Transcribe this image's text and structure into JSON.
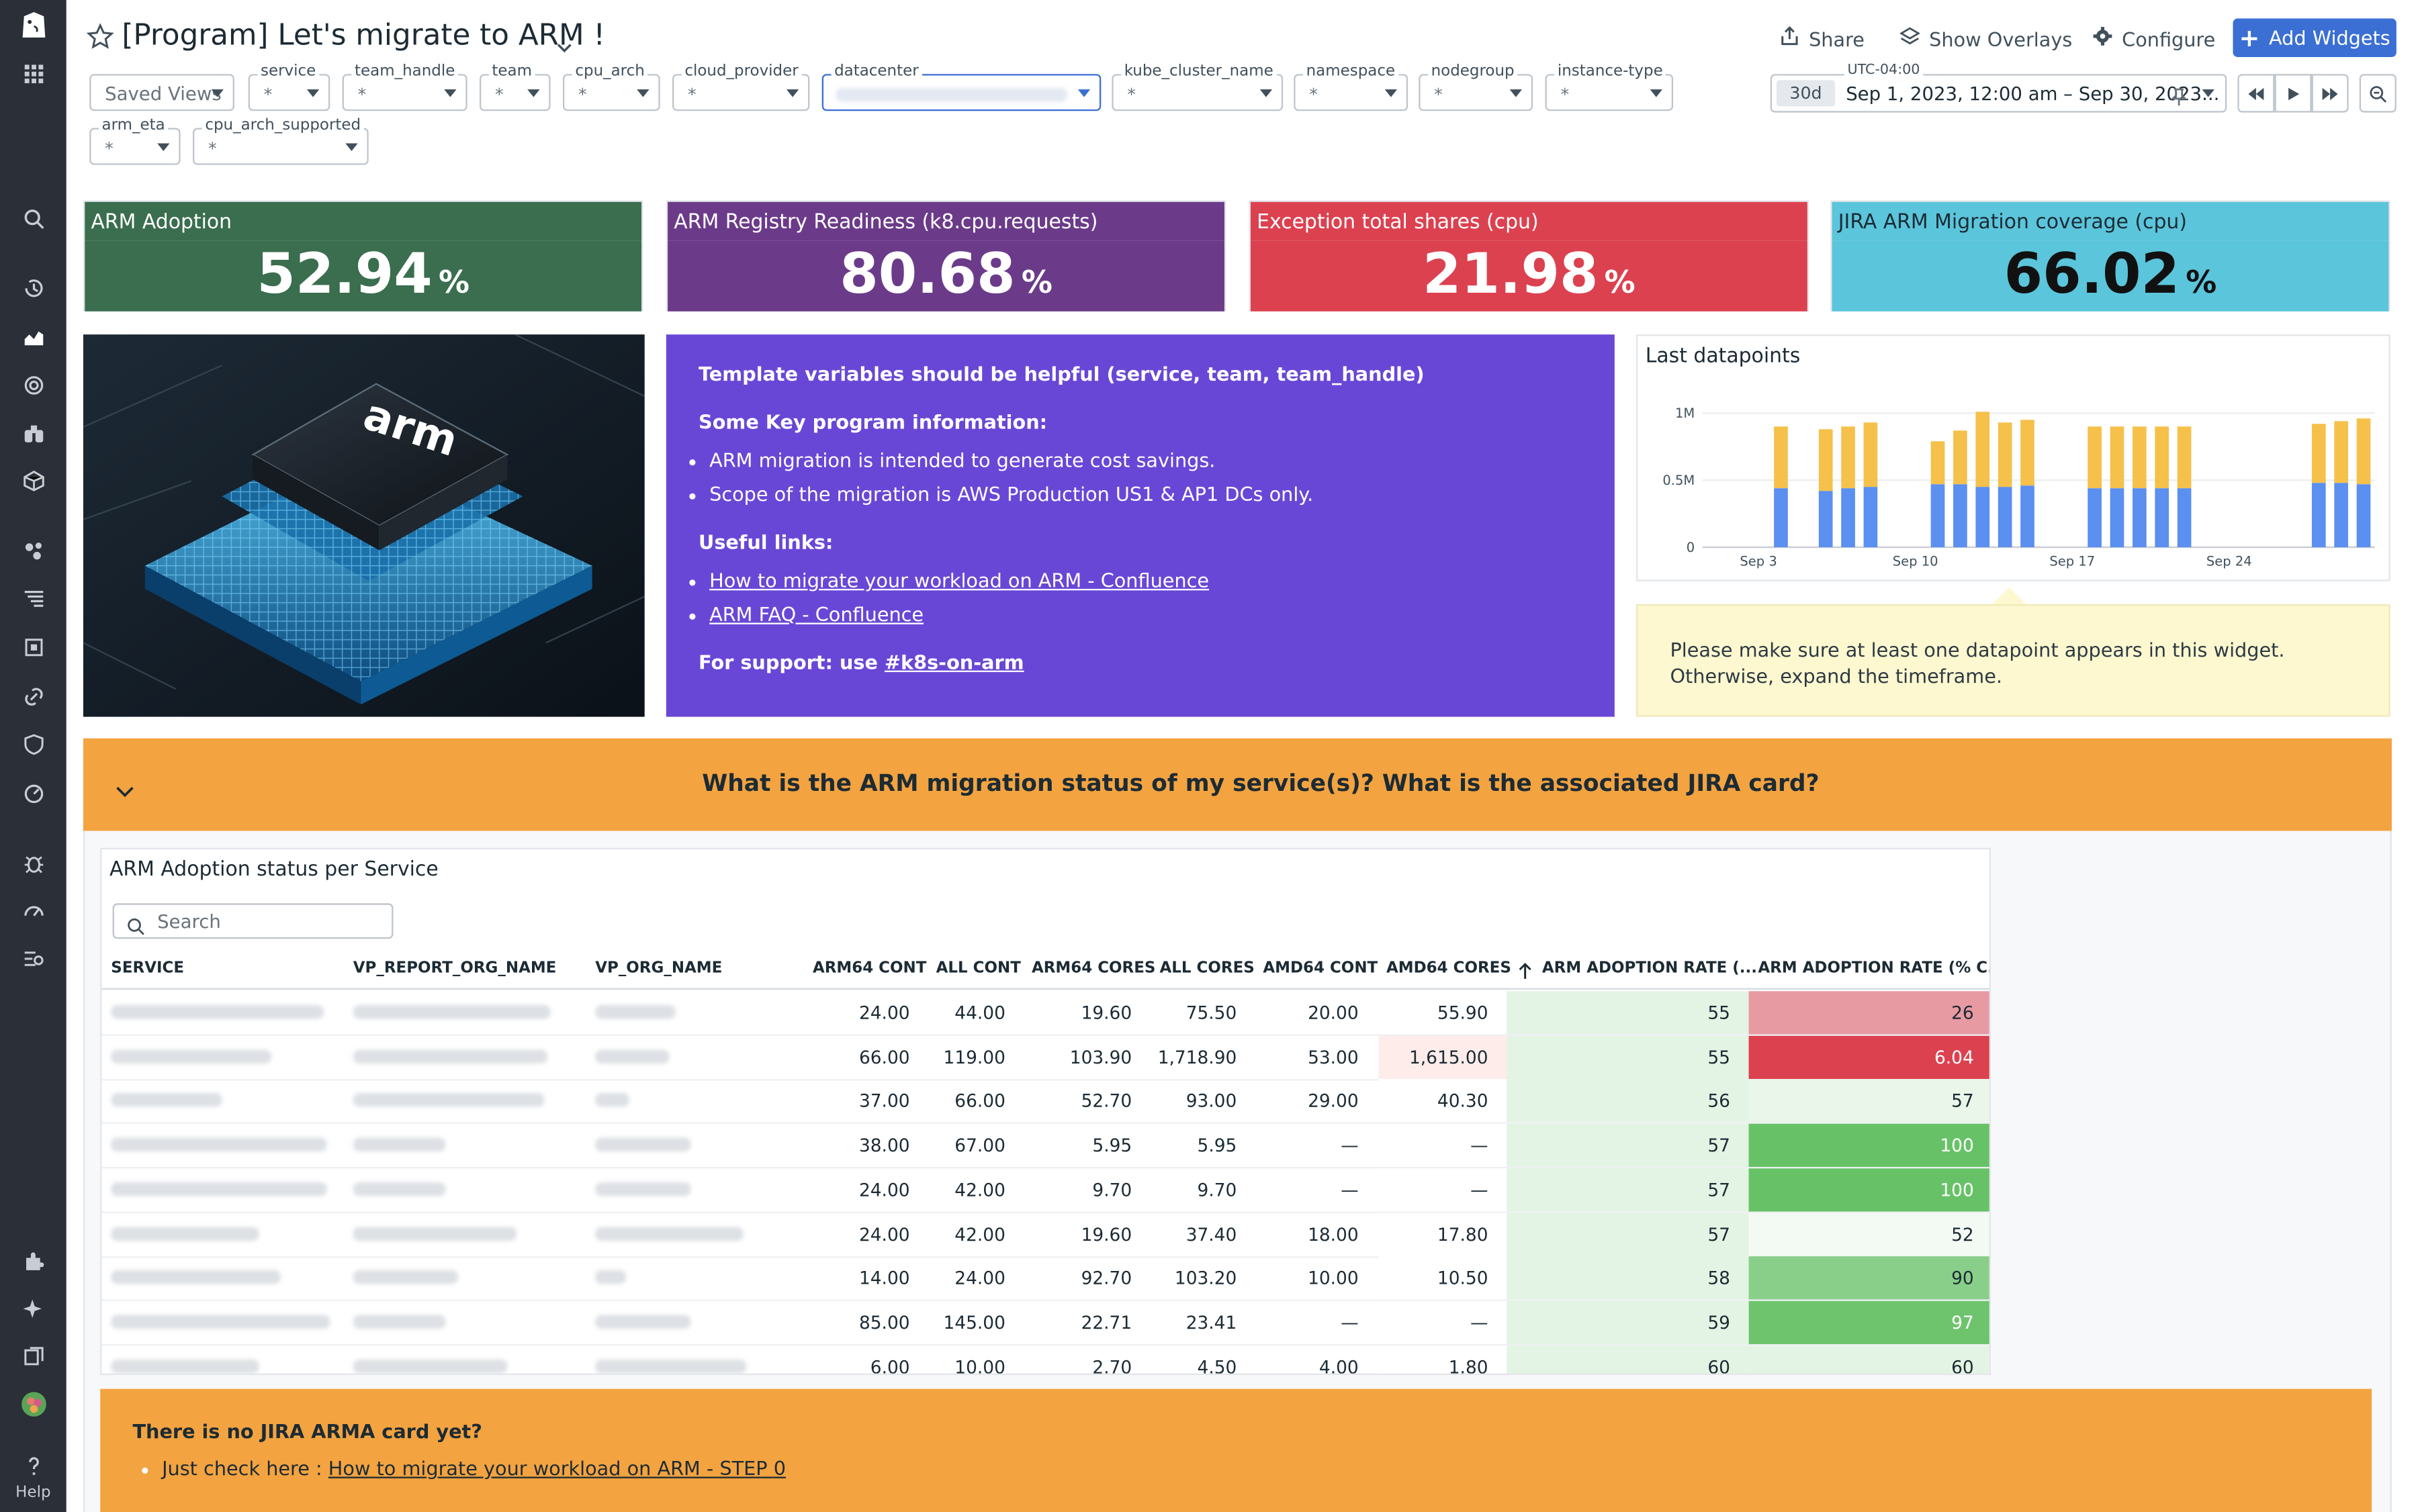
{
  "header": {
    "title": "[Program] Let's migrate to ARM !",
    "share": "Share",
    "overlays": "Show Overlays",
    "configure": "Configure",
    "add_widgets": "Add Widgets"
  },
  "sidebar": {
    "help": "Help"
  },
  "template_vars": {
    "saved_views": "Saved Views",
    "items": [
      {
        "label": "service",
        "value": "*"
      },
      {
        "label": "team_handle",
        "value": "*"
      },
      {
        "label": "team",
        "value": "*"
      },
      {
        "label": "cpu_arch",
        "value": "*"
      },
      {
        "label": "cloud_provider",
        "value": "*"
      },
      {
        "label": "datacenter",
        "value": ""
      },
      {
        "label": "kube_cluster_name",
        "value": "*"
      },
      {
        "label": "namespace",
        "value": "*"
      },
      {
        "label": "nodegroup",
        "value": "*"
      },
      {
        "label": "instance-type",
        "value": "*"
      },
      {
        "label": "arm_eta",
        "value": "*"
      },
      {
        "label": "cpu_arch_supported",
        "value": "*"
      }
    ]
  },
  "timeframe": {
    "tz": "UTC-04:00",
    "preset": "30d",
    "range": "Sep 1, 2023, 12:00 am – Sep 30, 2023..."
  },
  "query_values": [
    {
      "title": "ARM Adoption",
      "value": "52.94",
      "unit": "%",
      "color": "#3a6e4e"
    },
    {
      "title": "ARM Registry Readiness (k8.cpu.requests)",
      "value": "80.68",
      "unit": "%",
      "color": "#6b3b8a"
    },
    {
      "title": "Exception total shares (cpu)",
      "value": "21.98",
      "unit": "%",
      "color": "#dc4150"
    },
    {
      "title": "JIRA ARM Migration coverage (cpu)",
      "value": "66.02",
      "unit": "%",
      "color": "#5bc5db"
    }
  ],
  "note": {
    "line1": "Template variables should be helpful (service, team, team_handle)",
    "key_title": "Some Key program information:",
    "bullets": [
      "ARM migration is intended to generate cost savings.",
      "Scope of the migration is AWS Production US1 & AP1 DCs only."
    ],
    "links_title": "Useful links:",
    "links": [
      "How to migrate your workload on ARM - Confluence",
      "ARM FAQ - Confluence"
    ],
    "support_prefix": "For support: use ",
    "support_channel": "#k8s-on-arm"
  },
  "image": {
    "chip_text": "arm"
  },
  "chart_data": {
    "type": "bar",
    "title": "Last datapoints",
    "yticks": [
      "0",
      "0.5M",
      "1M"
    ],
    "xticks": [
      "Sep 3",
      "Sep 10",
      "Sep 17",
      "Sep 24"
    ],
    "ylim": [
      0,
      1000000
    ],
    "x": [
      "Sep 1",
      "Sep 2",
      "Sep 3",
      "Sep 4",
      "Sep 5",
      "Sep 6",
      "Sep 7",
      "Sep 8",
      "Sep 9",
      "Sep 10",
      "Sep 11",
      "Sep 12",
      "Sep 13",
      "Sep 14",
      "Sep 15",
      "Sep 16",
      "Sep 17",
      "Sep 18",
      "Sep 19",
      "Sep 20",
      "Sep 21",
      "Sep 22",
      "Sep 23",
      "Sep 24",
      "Sep 25",
      "Sep 26",
      "Sep 27",
      "Sep 28",
      "Sep 29",
      "Sep 30"
    ],
    "series": [
      {
        "color": "#5b8ff0",
        "values": [
          0,
          0,
          0,
          440000,
          0,
          420000,
          440000,
          450000,
          0,
          0,
          470000,
          470000,
          450000,
          450000,
          460000,
          0,
          0,
          440000,
          440000,
          440000,
          440000,
          440000,
          0,
          0,
          0,
          0,
          0,
          480000,
          480000,
          470000
        ]
      },
      {
        "color": "#f5c14b",
        "values": [
          0,
          0,
          0,
          460000,
          0,
          460000,
          460000,
          480000,
          0,
          0,
          320000,
          400000,
          560000,
          480000,
          490000,
          0,
          0,
          460000,
          460000,
          460000,
          460000,
          460000,
          0,
          0,
          0,
          0,
          0,
          440000,
          460000,
          490000
        ]
      }
    ]
  },
  "warning": {
    "text": "Please make sure at least one datapoint appears in this widget. Otherwise, expand the timeframe."
  },
  "group": {
    "title": "What is the ARM migration status of my service(s)? What is the associated JIRA card?"
  },
  "table": {
    "title": "ARM Adoption status per Service",
    "search_placeholder": "Search",
    "columns": [
      "SERVICE",
      "VP_REPORT_ORG_NAME",
      "VP_ORG_NAME",
      "ARM64 CONT",
      "ALL CONT",
      "ARM64 CORES",
      "ALL CORES",
      "AMD64 CONT",
      "AMD64 CORES",
      "ARM ADOPTION RATE (...",
      "ARM ADOPTION RATE (% C..."
    ],
    "rows": [
      [
        "24.00",
        "44.00",
        "19.60",
        "75.50",
        "20.00",
        "55.90",
        "55",
        "26"
      ],
      [
        "66.00",
        "119.00",
        "103.90",
        "1,718.90",
        "53.00",
        "1,615.00",
        "55",
        "6.04"
      ],
      [
        "37.00",
        "66.00",
        "52.70",
        "93.00",
        "29.00",
        "40.30",
        "56",
        "57"
      ],
      [
        "38.00",
        "67.00",
        "5.95",
        "5.95",
        "—",
        "—",
        "57",
        "100"
      ],
      [
        "24.00",
        "42.00",
        "9.70",
        "9.70",
        "—",
        "—",
        "57",
        "100"
      ],
      [
        "24.00",
        "42.00",
        "19.60",
        "37.40",
        "18.00",
        "17.80",
        "57",
        "52"
      ],
      [
        "14.00",
        "24.00",
        "92.70",
        "103.20",
        "10.00",
        "10.50",
        "58",
        "90"
      ],
      [
        "85.00",
        "145.00",
        "22.71",
        "23.41",
        "—",
        "—",
        "59",
        "97"
      ],
      [
        "6.00",
        "10.00",
        "2.70",
        "4.50",
        "4.00",
        "1.80",
        "60",
        "60"
      ]
    ],
    "last_col_colors": [
      "#e89aa2",
      "#dc4150",
      "#e9f6e9",
      "#67c267",
      "#67c267",
      "#f3faf3",
      "#89cf89",
      "#6dc46d",
      "#e4f4e4"
    ],
    "amd_cores_tint": [
      "#fff",
      "#fdecea",
      "#fff",
      "#fff",
      "#fff",
      "#fff",
      "#fff",
      "#fff",
      "#fff"
    ]
  },
  "jira_note": {
    "title": "There is no JIRA ARMA card yet?",
    "bullet_prefix": "Just check here : ",
    "link": "How to migrate your workload on ARM - STEP 0"
  }
}
